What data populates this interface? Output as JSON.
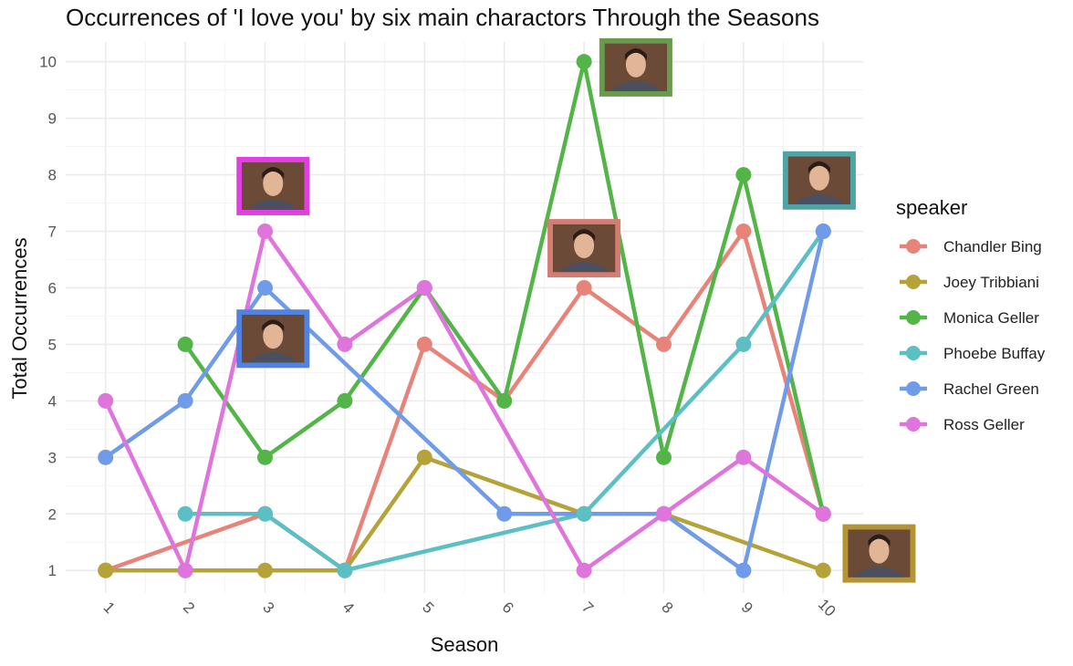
{
  "chart_data": {
    "type": "line",
    "title": "Occurrences of 'I love you' by six main charactors Through the Seasons",
    "xlabel": "Season",
    "ylabel": "Total Occurrences",
    "x": [
      1,
      2,
      3,
      4,
      5,
      6,
      7,
      8,
      9,
      10
    ],
    "x_tick_labels": [
      "1",
      "2",
      "3",
      "4",
      "5",
      "6",
      "7",
      "8",
      "9",
      "10"
    ],
    "y_tick_labels": [
      "1",
      "2",
      "3",
      "4",
      "5",
      "6",
      "7",
      "8",
      "9",
      "10"
    ],
    "xlim": [
      0.5,
      10.5
    ],
    "ylim": [
      0.6,
      10.35
    ],
    "grid": true,
    "legend": {
      "title": "speaker",
      "position": "right"
    },
    "series": [
      {
        "name": "Chandler Bing",
        "color": "#e8837a",
        "portrait_color": "#d27c72",
        "points": [
          [
            1,
            1
          ],
          [
            3,
            2
          ],
          [
            4,
            1
          ],
          [
            5,
            5
          ],
          [
            6,
            4
          ],
          [
            7,
            6
          ],
          [
            8,
            5
          ],
          [
            9,
            7
          ],
          [
            10,
            2
          ]
        ],
        "portrait_at": [
          7,
          6.7
        ]
      },
      {
        "name": "Joey Tribbiani",
        "color": "#b5a33a",
        "portrait_color": "#b59533",
        "points": [
          [
            1,
            1
          ],
          [
            2,
            1
          ],
          [
            3,
            1
          ],
          [
            4,
            1
          ],
          [
            5,
            3
          ],
          [
            7,
            2
          ],
          [
            8,
            2
          ],
          [
            10,
            1
          ]
        ],
        "portrait_at": [
          10.7,
          1.3
        ]
      },
      {
        "name": "Monica Geller",
        "color": "#53b548",
        "portrait_color": "#6a9a4e",
        "points": [
          [
            2,
            5
          ],
          [
            3,
            3
          ],
          [
            4,
            4
          ],
          [
            5,
            6
          ],
          [
            6,
            4
          ],
          [
            7,
            10
          ],
          [
            8,
            3
          ],
          [
            9,
            8
          ],
          [
            10,
            2
          ]
        ],
        "portrait_at": [
          7.65,
          9.9
        ]
      },
      {
        "name": "Phoebe Buffay",
        "color": "#5bbfc4",
        "portrait_color": "#4fa4a6",
        "points": [
          [
            2,
            2
          ],
          [
            3,
            2
          ],
          [
            4,
            1
          ],
          [
            7,
            2
          ],
          [
            9,
            5
          ],
          [
            10,
            7
          ]
        ],
        "portrait_at": [
          9.95,
          7.9
        ]
      },
      {
        "name": "Rachel Green",
        "color": "#6f9be9",
        "portrait_color": "#5282e0",
        "points": [
          [
            1,
            3
          ],
          [
            2,
            4
          ],
          [
            3,
            6
          ],
          [
            6,
            2
          ],
          [
            8,
            2
          ],
          [
            9,
            1
          ],
          [
            10,
            7
          ]
        ],
        "portrait_at": [
          3.1,
          5.1
        ]
      },
      {
        "name": "Ross Geller",
        "color": "#df74dc",
        "portrait_color": "#e23fe0",
        "points": [
          [
            1,
            4
          ],
          [
            2,
            1
          ],
          [
            3,
            7
          ],
          [
            4,
            5
          ],
          [
            5,
            6
          ],
          [
            7,
            1
          ],
          [
            8,
            2
          ],
          [
            9,
            3
          ],
          [
            10,
            2
          ]
        ],
        "portrait_at": [
          3.1,
          7.8
        ]
      }
    ]
  }
}
